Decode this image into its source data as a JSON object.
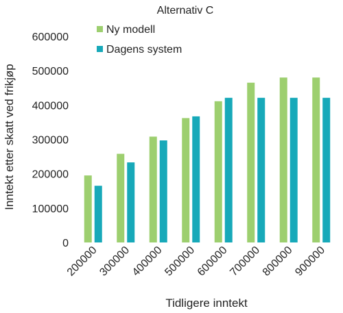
{
  "chart_data": {
    "type": "bar",
    "title": "Alternativ C",
    "xlabel": "Tidligere inntekt",
    "ylabel": "Inntekt etter skatt ved frikjøp",
    "categories": [
      "200000",
      "300000",
      "400000",
      "500000",
      "600000",
      "700000",
      "800000",
      "900000"
    ],
    "series": [
      {
        "name": "Ny modell",
        "color": "#9dcf6f",
        "values": [
          195000,
          258000,
          308000,
          362000,
          411000,
          465000,
          480000,
          480000
        ]
      },
      {
        "name": "Dagens system",
        "color": "#17a9b9",
        "values": [
          165000,
          233000,
          297000,
          367000,
          421000,
          421000,
          421000,
          421000
        ]
      }
    ],
    "ylim": [
      0,
      600000
    ],
    "yticks": [
      "0",
      "100000",
      "200000",
      "300000",
      "400000",
      "500000",
      "600000"
    ],
    "grid": false,
    "legend_position": "top-left"
  }
}
